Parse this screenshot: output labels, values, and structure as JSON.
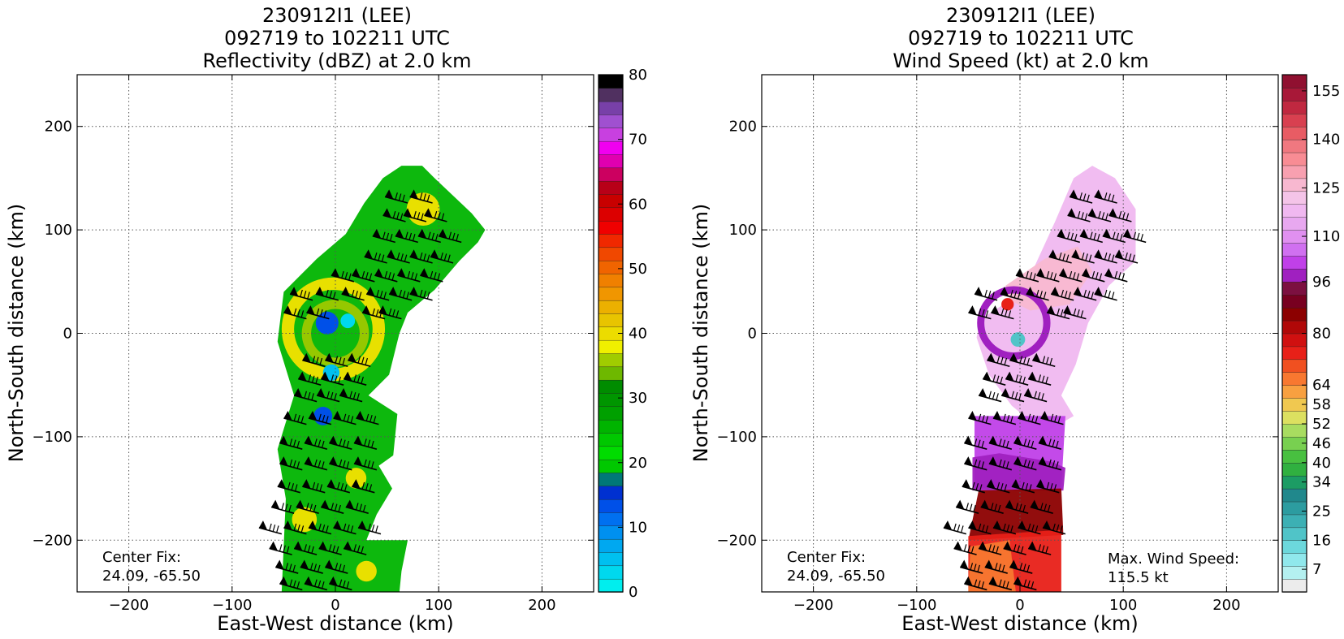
{
  "figure": {
    "background": "#ffffff"
  },
  "chart_data": [
    {
      "type": "heatmap",
      "title": [
        "230912I1 (LEE)",
        "092719 to 102211 UTC",
        "Reflectivity (dBZ) at 2.0 km"
      ],
      "xlabel": "East-West distance (km)",
      "ylabel": "North-South distance (km)",
      "xlim": [
        -250,
        250
      ],
      "ylim": [
        -250,
        250
      ],
      "xticks": [
        -200,
        -100,
        0,
        100,
        200
      ],
      "yticks": [
        -200,
        -100,
        0,
        100,
        200
      ],
      "grid": true,
      "annotations": [
        {
          "text": "Center Fix:\n24.09, -65.50",
          "position": "bottom-left"
        }
      ],
      "colorbar": {
        "label_ticks": [
          0,
          10,
          20,
          30,
          40,
          50,
          60,
          70,
          80
        ],
        "range": [
          0,
          80
        ],
        "colors": [
          "#00eeee",
          "#00d8ee",
          "#00c0f0",
          "#00a8f0",
          "#0090f0",
          "#0070f0",
          "#0050e8",
          "#0030d0",
          "#007878",
          "#00c800",
          "#00dc00",
          "#00c800",
          "#00b400",
          "#00a000",
          "#009600",
          "#008c00",
          "#6eb800",
          "#a0cc00",
          "#f0f000",
          "#ecdc00",
          "#e8c400",
          "#ecb000",
          "#f09600",
          "#f08000",
          "#f06400",
          "#f04800",
          "#f02800",
          "#f00000",
          "#dc0000",
          "#c80000",
          "#b80018",
          "#cc0060",
          "#e000b0",
          "#f000f0",
          "#c840e0",
          "#a050d0",
          "#7840a8",
          "#503060",
          "#000000"
        ]
      },
      "cyclone_center_km": [
        0,
        0
      ],
      "fields": [
        {
          "kind": "polygon",
          "color": "#00b400",
          "points": [
            [
              -52,
              -250
            ],
            [
              -48,
              -160
            ],
            [
              -56,
              -112
            ],
            [
              -40,
              -60
            ],
            [
              -56,
              -8
            ],
            [
              -50,
              40
            ],
            [
              -18,
              72
            ],
            [
              10,
              96
            ],
            [
              28,
              126
            ],
            [
              46,
              150
            ],
            [
              64,
              162
            ],
            [
              84,
              162
            ],
            [
              96,
              150
            ],
            [
              132,
              116
            ],
            [
              145,
              100
            ],
            [
              138,
              88
            ],
            [
              120,
              70
            ],
            [
              96,
              42
            ],
            [
              70,
              20
            ],
            [
              62,
              0
            ],
            [
              52,
              -40
            ],
            [
              32,
              -60
            ],
            [
              60,
              -78
            ],
            [
              56,
              -118
            ],
            [
              42,
              -128
            ],
            [
              55,
              -150
            ],
            [
              40,
              -175
            ],
            [
              30,
              -200
            ],
            [
              70,
              -200
            ],
            [
              64,
              -230
            ],
            [
              62,
              -250
            ]
          ]
        },
        {
          "kind": "ring",
          "color": "#e8e000",
          "center": [
            -2,
            4
          ],
          "radius": 44,
          "width": 12
        },
        {
          "kind": "ring",
          "color": "#96c800",
          "center": [
            0,
            0
          ],
          "radius": 28,
          "width": 9
        },
        {
          "kind": "blob",
          "color": "#0050e8",
          "center": [
            -8,
            10
          ],
          "radius": 11
        },
        {
          "kind": "blob",
          "color": "#00d8ee",
          "center": [
            12,
            12
          ],
          "radius": 7
        },
        {
          "kind": "blob",
          "color": "#00c0f0",
          "center": [
            -4,
            -38
          ],
          "radius": 8
        },
        {
          "kind": "blob",
          "color": "#0050e8",
          "center": [
            -12,
            -80
          ],
          "radius": 9
        },
        {
          "kind": "blob",
          "color": "#e8e000",
          "center": [
            85,
            120
          ],
          "radius": 16
        },
        {
          "kind": "blob",
          "color": "#e8e000",
          "center": [
            -30,
            -180
          ],
          "radius": 12
        },
        {
          "kind": "blob",
          "color": "#e8e000",
          "center": [
            20,
            -140
          ],
          "radius": 10
        },
        {
          "kind": "blob",
          "color": "#e8e000",
          "center": [
            30,
            -230
          ],
          "radius": 10
        }
      ],
      "wind_barb_rows": [
        {
          "y": 128,
          "x": [
            62,
            86
          ]
        },
        {
          "y": 110,
          "x": [
            60,
            80,
            100
          ]
        },
        {
          "y": 90,
          "x": [
            50,
            72,
            94,
            114
          ]
        },
        {
          "y": 70,
          "x": [
            42,
            64,
            86,
            106
          ]
        },
        {
          "y": 52,
          "x": [
            10,
            30,
            52,
            74,
            96
          ]
        },
        {
          "y": 34,
          "x": [
            -30,
            -5,
            20,
            44,
            66,
            86
          ]
        },
        {
          "y": 16,
          "x": [
            -36,
            -14,
            40,
            56
          ]
        },
        {
          "y": -30,
          "x": [
            -18,
            4,
            26
          ]
        },
        {
          "y": -48,
          "x": [
            -22,
            0,
            22
          ]
        },
        {
          "y": -64,
          "x": [
            -26,
            -4,
            18
          ]
        },
        {
          "y": -86,
          "x": [
            -36,
            -12,
            12,
            34
          ]
        },
        {
          "y": -110,
          "x": [
            -40,
            -16,
            8,
            32
          ]
        },
        {
          "y": -130,
          "x": [
            -40,
            -16,
            8,
            32
          ]
        },
        {
          "y": -152,
          "x": [
            -42,
            -18,
            6,
            30
          ]
        },
        {
          "y": -172,
          "x": [
            -48,
            -24,
            0,
            24
          ]
        },
        {
          "y": -192,
          "x": [
            -60,
            -36,
            -12,
            12,
            36
          ]
        },
        {
          "y": -212,
          "x": [
            -50,
            -26,
            -2,
            22
          ]
        },
        {
          "y": -230,
          "x": [
            -44,
            -20,
            4
          ]
        },
        {
          "y": -246,
          "x": [
            -40,
            -16,
            8
          ]
        }
      ]
    },
    {
      "type": "heatmap",
      "title": [
        "230912I1 (LEE)",
        "092719 to 102211 UTC",
        "Wind Speed (kt) at 2.0 km"
      ],
      "xlabel": "East-West distance (km)",
      "ylabel": "North-South distance (km)",
      "xlim": [
        -250,
        250
      ],
      "ylim": [
        -250,
        250
      ],
      "xticks": [
        -200,
        -100,
        0,
        100,
        200
      ],
      "yticks": [
        -200,
        -100,
        0,
        100,
        200
      ],
      "grid": true,
      "annotations": [
        {
          "text": "Center Fix:\n24.09, -65.50",
          "position": "bottom-left"
        },
        {
          "text": "Max. Wind Speed:\n115.5 kt",
          "position": "bottom-right"
        }
      ],
      "max_wind_speed_kt": 115.5,
      "colorbar": {
        "label_ticks": [
          7,
          16,
          25,
          34,
          40,
          46,
          52,
          58,
          64,
          80,
          96,
          110,
          125,
          140,
          155
        ],
        "range": [
          0,
          160
        ],
        "colors": [
          "#ececec",
          "#b4f0f0",
          "#90e8ec",
          "#6cd8dc",
          "#50c4c8",
          "#3cb0b4",
          "#2c9ca0",
          "#20888c",
          "#1c9c64",
          "#30b040",
          "#48c040",
          "#78d050",
          "#a8dc60",
          "#dce060",
          "#f0c850",
          "#f8a040",
          "#f87830",
          "#f05020",
          "#e82018",
          "#d01010",
          "#b00808",
          "#8c0000",
          "#780020",
          "#7c1040",
          "#a020c0",
          "#c040e8",
          "#d070f0",
          "#e090f0",
          "#e8a8f0",
          "#f0b8f0",
          "#f4c4e8",
          "#f8b8d0",
          "#f8a0b0",
          "#f88c94",
          "#f07880",
          "#e85c64",
          "#d84050",
          "#c02840",
          "#a81838",
          "#901030"
        ]
      },
      "cyclone_center_km": [
        0,
        0
      ],
      "fields": [
        {
          "kind": "polygon",
          "color": "#f0b8f0",
          "points": [
            [
              34,
              108
            ],
            [
              52,
              150
            ],
            [
              70,
              162
            ],
            [
              92,
              150
            ],
            [
              112,
              120
            ],
            [
              112,
              70
            ],
            [
              86,
              46
            ],
            [
              66,
              10
            ],
            [
              54,
              -30
            ],
            [
              40,
              -60
            ],
            [
              52,
              -80
            ],
            [
              24,
              -96
            ],
            [
              -8,
              -70
            ],
            [
              -30,
              -40
            ],
            [
              -42,
              -4
            ],
            [
              -38,
              14
            ],
            [
              -6,
              34
            ],
            [
              12,
              60
            ]
          ]
        },
        {
          "kind": "polygon",
          "color": "#f8b8d0",
          "points": [
            [
              -14,
              46
            ],
            [
              24,
              72
            ],
            [
              56,
              84
            ],
            [
              70,
              60
            ],
            [
              48,
              28
            ],
            [
              10,
              22
            ],
            [
              -10,
              32
            ]
          ]
        },
        {
          "kind": "polygon",
          "color": "#c040e8",
          "points": [
            [
              -44,
              -80
            ],
            [
              44,
              -80
            ],
            [
              40,
              -150
            ],
            [
              -44,
              -150
            ]
          ]
        },
        {
          "kind": "polygon",
          "color": "#a020c0",
          "points": [
            [
              -46,
              -120
            ],
            [
              -20,
              -116
            ],
            [
              30,
              -124
            ],
            [
              44,
              -130
            ],
            [
              42,
              -152
            ],
            [
              -46,
              -152
            ]
          ]
        },
        {
          "kind": "polygon",
          "color": "#8c0000",
          "points": [
            [
              -40,
              -152
            ],
            [
              40,
              -150
            ],
            [
              42,
              -195
            ],
            [
              -50,
              -200
            ]
          ]
        },
        {
          "kind": "polygon",
          "color": "#e82018",
          "points": [
            [
              -50,
              -196
            ],
            [
              40,
              -190
            ],
            [
              40,
              -250
            ],
            [
              -50,
              -250
            ]
          ]
        },
        {
          "kind": "polygon",
          "color": "#f87830",
          "points": [
            [
              -48,
              -206
            ],
            [
              -10,
              -200
            ],
            [
              -4,
              -250
            ],
            [
              -50,
              -250
            ]
          ]
        },
        {
          "kind": "ring",
          "color": "#a020c0",
          "center": [
            -6,
            10
          ],
          "radius": 32,
          "width": 7
        },
        {
          "kind": "blob",
          "color": "#e82018",
          "center": [
            -12,
            28
          ],
          "radius": 6
        },
        {
          "kind": "blob",
          "color": "#50c4c8",
          "center": [
            -2,
            -6
          ],
          "radius": 7
        }
      ],
      "wind_barb_rows": [
        {
          "y": 128,
          "x": [
            62,
            86
          ]
        },
        {
          "y": 110,
          "x": [
            60,
            80,
            100
          ]
        },
        {
          "y": 90,
          "x": [
            50,
            72,
            94,
            114
          ]
        },
        {
          "y": 70,
          "x": [
            42,
            64,
            86,
            106
          ]
        },
        {
          "y": 52,
          "x": [
            10,
            30,
            52,
            74,
            96
          ]
        },
        {
          "y": 34,
          "x": [
            -30,
            -5,
            20,
            44,
            66,
            86
          ]
        },
        {
          "y": 16,
          "x": [
            -36,
            -14,
            40,
            56
          ]
        },
        {
          "y": -30,
          "x": [
            -18,
            4,
            26
          ]
        },
        {
          "y": -48,
          "x": [
            -22,
            0,
            22
          ]
        },
        {
          "y": -64,
          "x": [
            -26,
            -4,
            18
          ]
        },
        {
          "y": -86,
          "x": [
            -36,
            -12,
            12,
            34
          ]
        },
        {
          "y": -110,
          "x": [
            -40,
            -16,
            8,
            32
          ]
        },
        {
          "y": -130,
          "x": [
            -40,
            -16,
            8,
            32
          ]
        },
        {
          "y": -152,
          "x": [
            -42,
            -18,
            6,
            30
          ]
        },
        {
          "y": -172,
          "x": [
            -48,
            -24,
            0,
            24
          ]
        },
        {
          "y": -192,
          "x": [
            -60,
            -36,
            -12,
            12,
            36
          ]
        },
        {
          "y": -212,
          "x": [
            -50,
            -26,
            -2,
            22
          ]
        },
        {
          "y": -230,
          "x": [
            -44,
            -20,
            4
          ]
        },
        {
          "y": -246,
          "x": [
            -40,
            -16,
            8
          ]
        }
      ]
    }
  ]
}
